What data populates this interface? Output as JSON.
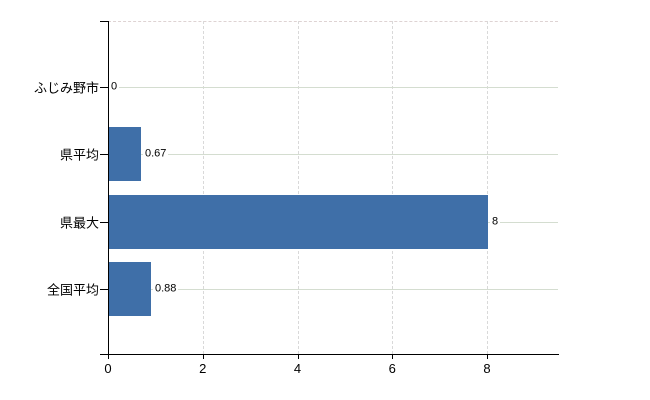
{
  "chart_data": {
    "type": "bar",
    "orientation": "horizontal",
    "title": "",
    "xlabel": "",
    "ylabel": "",
    "legend": "none",
    "grid": "on",
    "categories": [
      "ふじみ野市",
      "県平均",
      "県最大",
      "全国平均"
    ],
    "values": [
      0,
      0.67,
      8,
      0.88
    ],
    "value_labels": [
      "0",
      "0.67",
      "8",
      "0.88"
    ],
    "x_ticks": [
      0,
      2,
      4,
      6,
      8
    ],
    "x_tick_labels": [
      "0",
      "2",
      "4",
      "6",
      "8"
    ],
    "xlim": [
      0,
      9.5
    ],
    "bar_color": "#3f6fa8",
    "axis_color": "#000000",
    "h_gridline_color": "#d4ddd0",
    "v_gridline_color": "#d9d9d9",
    "top_border_color": "#ded3d3",
    "text_color": "#000000"
  }
}
